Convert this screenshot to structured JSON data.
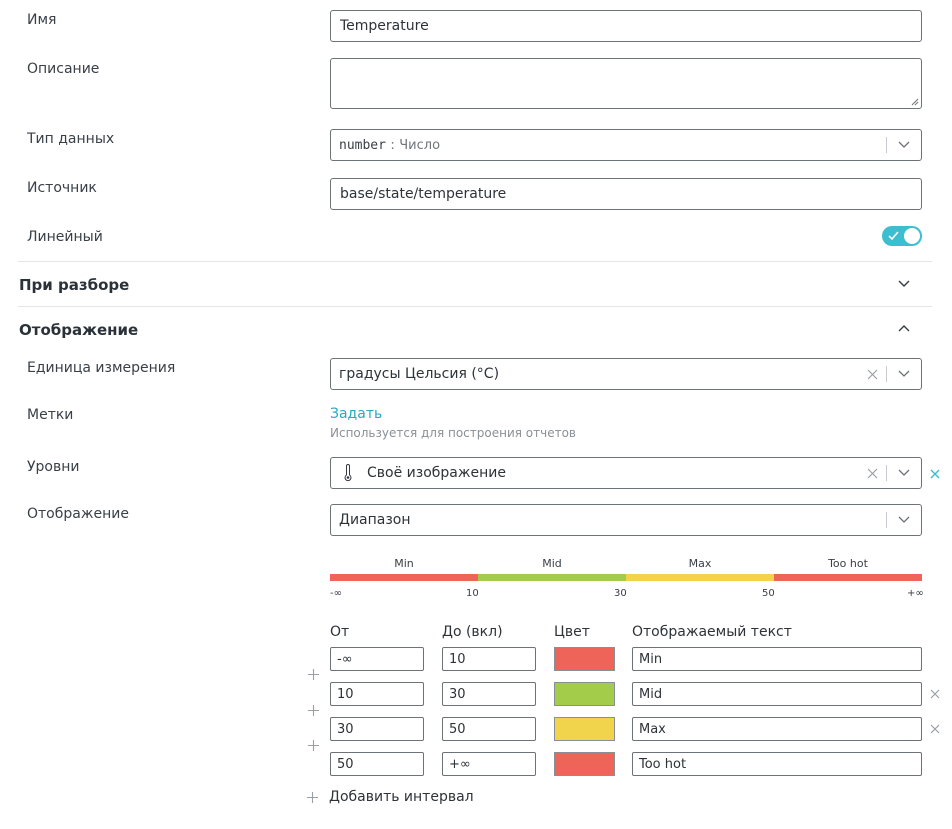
{
  "fields": {
    "name": {
      "label": "Имя",
      "value": "Temperature"
    },
    "description": {
      "label": "Описание",
      "value": ""
    },
    "data_type": {
      "label": "Тип данных",
      "code": "number",
      "separator": ":",
      "text": "Число"
    },
    "source": {
      "label": "Источник",
      "value": "base/state/temperature"
    },
    "linear": {
      "label": "Линейный",
      "checked": true
    }
  },
  "sections": {
    "parsing": {
      "title": "При разборе",
      "expanded": false
    },
    "display": {
      "title": "Отображение",
      "expanded": true
    }
  },
  "display": {
    "unit": {
      "label": "Единица измерения",
      "value": "градусы Цельсия (°C)"
    },
    "tags": {
      "label": "Метки",
      "link": "Задать",
      "hint": "Используется для построения отчетов"
    },
    "levels": {
      "label": "Уровни",
      "value": "Своё изображение",
      "icon": "thermometer-icon"
    },
    "mode": {
      "label": "Отображение",
      "value": "Диапазон"
    }
  },
  "scale": {
    "segments": [
      {
        "label": "Min",
        "color": "#ef6458"
      },
      {
        "label": "Mid",
        "color": "#a3cc4a"
      },
      {
        "label": "Max",
        "color": "#f2d34c"
      },
      {
        "label": "Too hot",
        "color": "#ef6458"
      }
    ],
    "ticks": [
      "-∞",
      "10",
      "30",
      "50",
      "+∞"
    ]
  },
  "intervals": {
    "headers": {
      "from": "От",
      "to": "До (вкл)",
      "color": "Цвет",
      "text": "Отображаемый текст"
    },
    "rows": [
      {
        "from": "-∞",
        "to": "10",
        "color": "#ef6458",
        "text": "Min"
      },
      {
        "from": "10",
        "to": "30",
        "color": "#a3cc4a",
        "text": "Mid"
      },
      {
        "from": "30",
        "to": "50",
        "color": "#f2d34c",
        "text": "Max"
      },
      {
        "from": "50",
        "to": "+∞",
        "color": "#ef6458",
        "text": "Too hot"
      }
    ],
    "add_label": "Добавить интервал"
  }
}
